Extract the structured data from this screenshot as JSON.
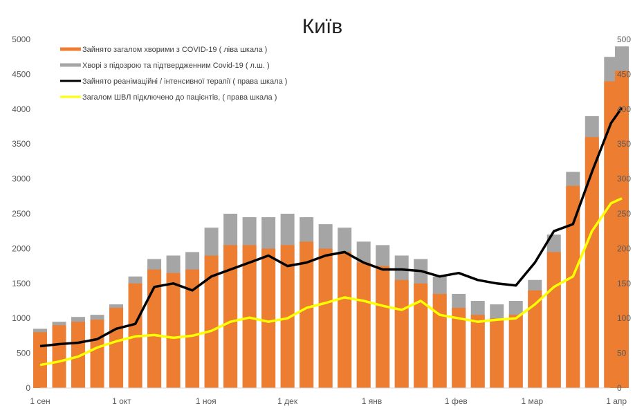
{
  "chart_data": {
    "type": "bar+line",
    "title": "Київ",
    "x_tick_labels": [
      "1 сен",
      "1 окт",
      "1 ноя",
      "1 дек",
      "1 янв",
      "1 фев",
      "1 мар",
      "1 апр"
    ],
    "x_tick_dates": [
      "2020-09-01",
      "2020-10-01",
      "2020-11-01",
      "2020-12-01",
      "2021-01-01",
      "2021-02-01",
      "2021-03-01",
      "2021-04-01"
    ],
    "ylim_left": [
      0,
      5000
    ],
    "yticks_left": [
      0,
      500,
      1000,
      1500,
      2000,
      2500,
      3000,
      3500,
      4000,
      4500,
      5000
    ],
    "ylim_right": [
      0,
      500
    ],
    "yticks_right": [
      0,
      50,
      100,
      150,
      200,
      250,
      300,
      350,
      400,
      450,
      500
    ],
    "legend_position": "top-left",
    "grid": false,
    "dates": [
      "2020-09-01",
      "2020-09-08",
      "2020-09-15",
      "2020-09-22",
      "2020-09-29",
      "2020-10-06",
      "2020-10-13",
      "2020-10-20",
      "2020-10-27",
      "2020-11-03",
      "2020-11-10",
      "2020-11-17",
      "2020-11-24",
      "2020-12-01",
      "2020-12-08",
      "2020-12-15",
      "2020-12-22",
      "2020-12-29",
      "2021-01-05",
      "2021-01-12",
      "2021-01-19",
      "2021-01-26",
      "2021-02-02",
      "2021-02-09",
      "2021-02-16",
      "2021-02-23",
      "2021-03-02",
      "2021-03-09",
      "2021-03-16",
      "2021-03-23",
      "2021-03-30",
      "2021-04-03"
    ],
    "series": [
      {
        "name": "Зайнято загалом хворими з COVID-19 ( ліва шкала )",
        "type": "bar",
        "axis": "left",
        "color": "#ED7D31",
        "values": [
          800,
          900,
          950,
          980,
          1150,
          1500,
          1700,
          1650,
          1700,
          1900,
          2050,
          2050,
          2000,
          2050,
          2100,
          2000,
          1950,
          1800,
          1750,
          1550,
          1500,
          1350,
          1150,
          1050,
          1000,
          1050,
          1400,
          1950,
          2900,
          3600,
          4400,
          4550
        ]
      },
      {
        "name": "Хворі з підозрою та підтвердженним Covid-19 ( л.ш. )",
        "type": "bar",
        "axis": "left",
        "color": "#A5A5A5",
        "values": [
          850,
          950,
          1020,
          1050,
          1200,
          1600,
          1850,
          1900,
          1950,
          2300,
          2500,
          2450,
          2450,
          2500,
          2450,
          2350,
          2300,
          2100,
          2050,
          1900,
          1850,
          1600,
          1350,
          1250,
          1200,
          1250,
          1550,
          2200,
          3100,
          3900,
          4750,
          4900
        ]
      },
      {
        "name": "Зайнято реанімаційні / інтенсивної терапії ( права шкала )",
        "type": "line",
        "axis": "right",
        "color": "#000000",
        "values": [
          60,
          63,
          65,
          70,
          85,
          92,
          145,
          150,
          140,
          160,
          170,
          180,
          190,
          175,
          180,
          190,
          195,
          180,
          170,
          170,
          168,
          160,
          165,
          155,
          150,
          147,
          180,
          225,
          235,
          310,
          380,
          402
        ]
      },
      {
        "name": "Загалом ШВЛ  підключено до пацієнтів, ( права шкала )",
        "type": "line",
        "axis": "right",
        "color": "#FFFF00",
        "values": [
          33,
          38,
          45,
          58,
          67,
          74,
          76,
          72,
          75,
          82,
          95,
          101,
          95,
          100,
          115,
          122,
          130,
          125,
          118,
          112,
          125,
          105,
          100,
          95,
          98,
          100,
          120,
          145,
          160,
          225,
          265,
          272
        ]
      }
    ]
  }
}
